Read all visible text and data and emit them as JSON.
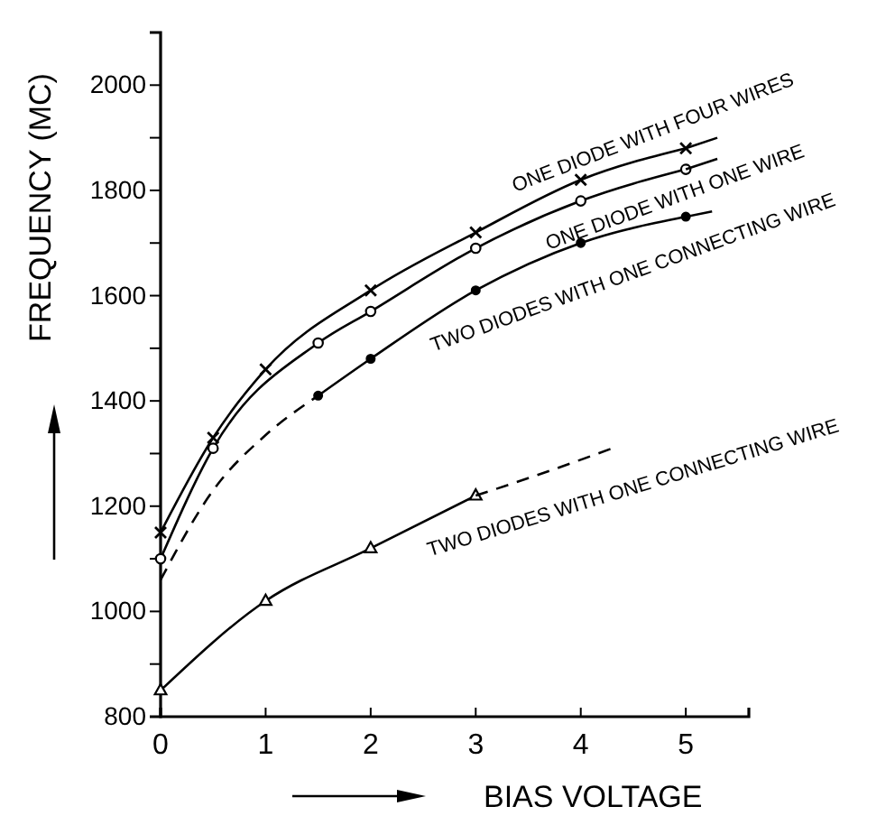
{
  "chart_data": {
    "type": "line",
    "xlabel": "BIAS VOLTAGE",
    "ylabel": "FREQUENCY (MC)",
    "xlim": [
      0,
      5.6
    ],
    "ylim": [
      800,
      2100
    ],
    "xticks": [
      0,
      1,
      2,
      3,
      4,
      5
    ],
    "yticks": [
      800,
      {
        "value": 900,
        "label": null
      },
      1000,
      {
        "value": 1100,
        "label": null
      },
      1200,
      {
        "value": 1300,
        "label": null
      },
      1400,
      {
        "value": 1500,
        "label": null
      },
      1600,
      {
        "value": 1700,
        "label": null
      },
      1800,
      {
        "value": 1900,
        "label": null
      },
      2000
    ],
    "series": [
      {
        "name": "ONE DIODE WITH FOUR WIRES",
        "color": "#000000",
        "marker": "cross",
        "line_style": "solid",
        "x": [
          0,
          0.5,
          1,
          2,
          3,
          4,
          5
        ],
        "values": [
          1150,
          1330,
          1460,
          1610,
          1720,
          1820,
          1880
        ]
      },
      {
        "color": "#000000",
        "marker": "none",
        "line_style": "solid",
        "x": [
          5,
          5.3
        ],
        "values": [
          1880,
          1900
        ]
      },
      {
        "name": "ONE DIODE WITH ONE WIRE",
        "color": "#000000",
        "marker": "circle",
        "line_style": "solid",
        "x": [
          0,
          0.5,
          1.5,
          2,
          3,
          4,
          5
        ],
        "values": [
          1100,
          1310,
          1510,
          1570,
          1690,
          1780,
          1840
        ]
      },
      {
        "color": "#000000",
        "marker": "none",
        "line_style": "solid",
        "x": [
          5,
          5.3
        ],
        "values": [
          1840,
          1860
        ]
      },
      {
        "name": "TWO DIODES WITH ONE CONNECTING WIRE",
        "color": "#000000",
        "marker": "circle",
        "line_style": "solid",
        "x": [
          1.5,
          2,
          3,
          4,
          5
        ],
        "values": [
          1410,
          1480,
          1610,
          1700,
          1750
        ]
      },
      {
        "color": "#000000",
        "marker": "none",
        "line_style": "dashed",
        "x": [
          0,
          0.5,
          1,
          1.5
        ],
        "values": [
          1060,
          1230,
          1335,
          1410
        ]
      },
      {
        "color": "#000000",
        "marker": "none",
        "line_style": "solid",
        "x": [
          5,
          5.25
        ],
        "values": [
          1750,
          1760
        ]
      },
      {
        "name": "TWO DIODES WITH ONE CONNECTING WIRE",
        "color": "#000000",
        "marker": "triangle",
        "line_style": "solid",
        "x": [
          0,
          1,
          2,
          3
        ],
        "values": [
          850,
          1020,
          1120,
          1220
        ]
      },
      {
        "color": "#000000",
        "marker": "none",
        "line_style": "dashed",
        "x": [
          3,
          3.6,
          4.3
        ],
        "values": [
          1220,
          1260,
          1310
        ]
      }
    ]
  }
}
